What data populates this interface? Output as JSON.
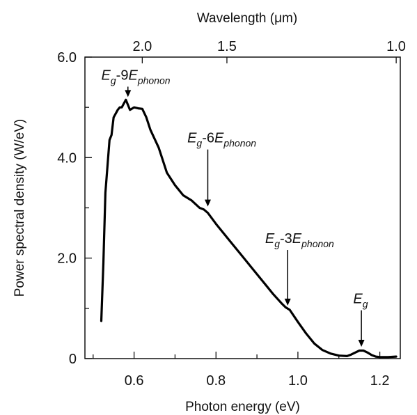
{
  "chart_data": {
    "type": "line",
    "title": "",
    "xlabel": "Photon energy (eV)",
    "ylabel": "Power spectral density (W/eV)",
    "top_xlabel": "Wavelength (μm)",
    "xlim": [
      0.48,
      1.25
    ],
    "ylim": [
      0,
      6.0
    ],
    "x_ticks": [
      0.6,
      0.8,
      1.0,
      1.2
    ],
    "x_tick_labels": [
      "0.6",
      "0.8",
      "1.0",
      "1.2"
    ],
    "y_ticks": [
      0,
      2.0,
      4.0,
      6.0
    ],
    "y_tick_labels": [
      "0",
      "2.0",
      "4.0",
      "6.0"
    ],
    "top_ticks": [
      {
        "label": "2.0",
        "wavelength_um": 2.0
      },
      {
        "label": "1.5",
        "wavelength_um": 1.5
      },
      {
        "label": "1.0",
        "wavelength_um": 1.0
      }
    ],
    "grid": false,
    "series": [
      {
        "x": [
          0.52,
          0.525,
          0.53,
          0.54,
          0.545,
          0.55,
          0.56,
          0.565,
          0.57,
          0.58,
          0.59,
          0.6,
          0.61,
          0.62,
          0.63,
          0.64,
          0.66,
          0.68,
          0.7,
          0.72,
          0.74,
          0.76,
          0.77,
          0.78,
          0.8,
          0.82,
          0.84,
          0.86,
          0.88,
          0.9,
          0.92,
          0.94,
          0.96,
          0.97,
          0.98,
          1.0,
          1.02,
          1.04,
          1.06,
          1.08,
          1.1,
          1.12,
          1.13,
          1.14,
          1.15,
          1.16,
          1.17,
          1.18,
          1.19,
          1.2,
          1.22,
          1.24
        ],
        "y": [
          0.75,
          1.9,
          3.3,
          4.35,
          4.45,
          4.8,
          4.95,
          5.0,
          5.0,
          5.15,
          4.95,
          5.0,
          4.98,
          4.97,
          4.8,
          4.55,
          4.2,
          3.7,
          3.45,
          3.25,
          3.15,
          3.0,
          2.97,
          2.9,
          2.68,
          2.48,
          2.28,
          2.08,
          1.88,
          1.68,
          1.48,
          1.28,
          1.1,
          1.02,
          0.97,
          0.73,
          0.5,
          0.3,
          0.17,
          0.1,
          0.06,
          0.05,
          0.08,
          0.12,
          0.16,
          0.16,
          0.12,
          0.07,
          0.04,
          0.03,
          0.03,
          0.04
        ]
      }
    ],
    "annotations": [
      {
        "main": "E",
        "sub": "g",
        "rest": "-9",
        "main2": "E",
        "sub2": "phonon",
        "x": 0.585,
        "y": 5.15,
        "label_x": 0.52,
        "label_y": 5.55
      },
      {
        "main": "E",
        "sub": "g",
        "rest": "-6",
        "main2": "E",
        "sub2": "phonon",
        "x": 0.78,
        "y": 2.97,
        "label_x": 0.73,
        "label_y": 4.3
      },
      {
        "main": "E",
        "sub": "g",
        "rest": "-3",
        "main2": "E",
        "sub2": "phonon",
        "x": 0.975,
        "y": 1.0,
        "label_x": 0.92,
        "label_y": 2.3
      },
      {
        "main": "E",
        "sub": "g",
        "rest": "",
        "main2": "",
        "sub2": "",
        "x": 1.155,
        "y": 0.18,
        "label_x": 1.135,
        "label_y": 1.1
      }
    ]
  }
}
